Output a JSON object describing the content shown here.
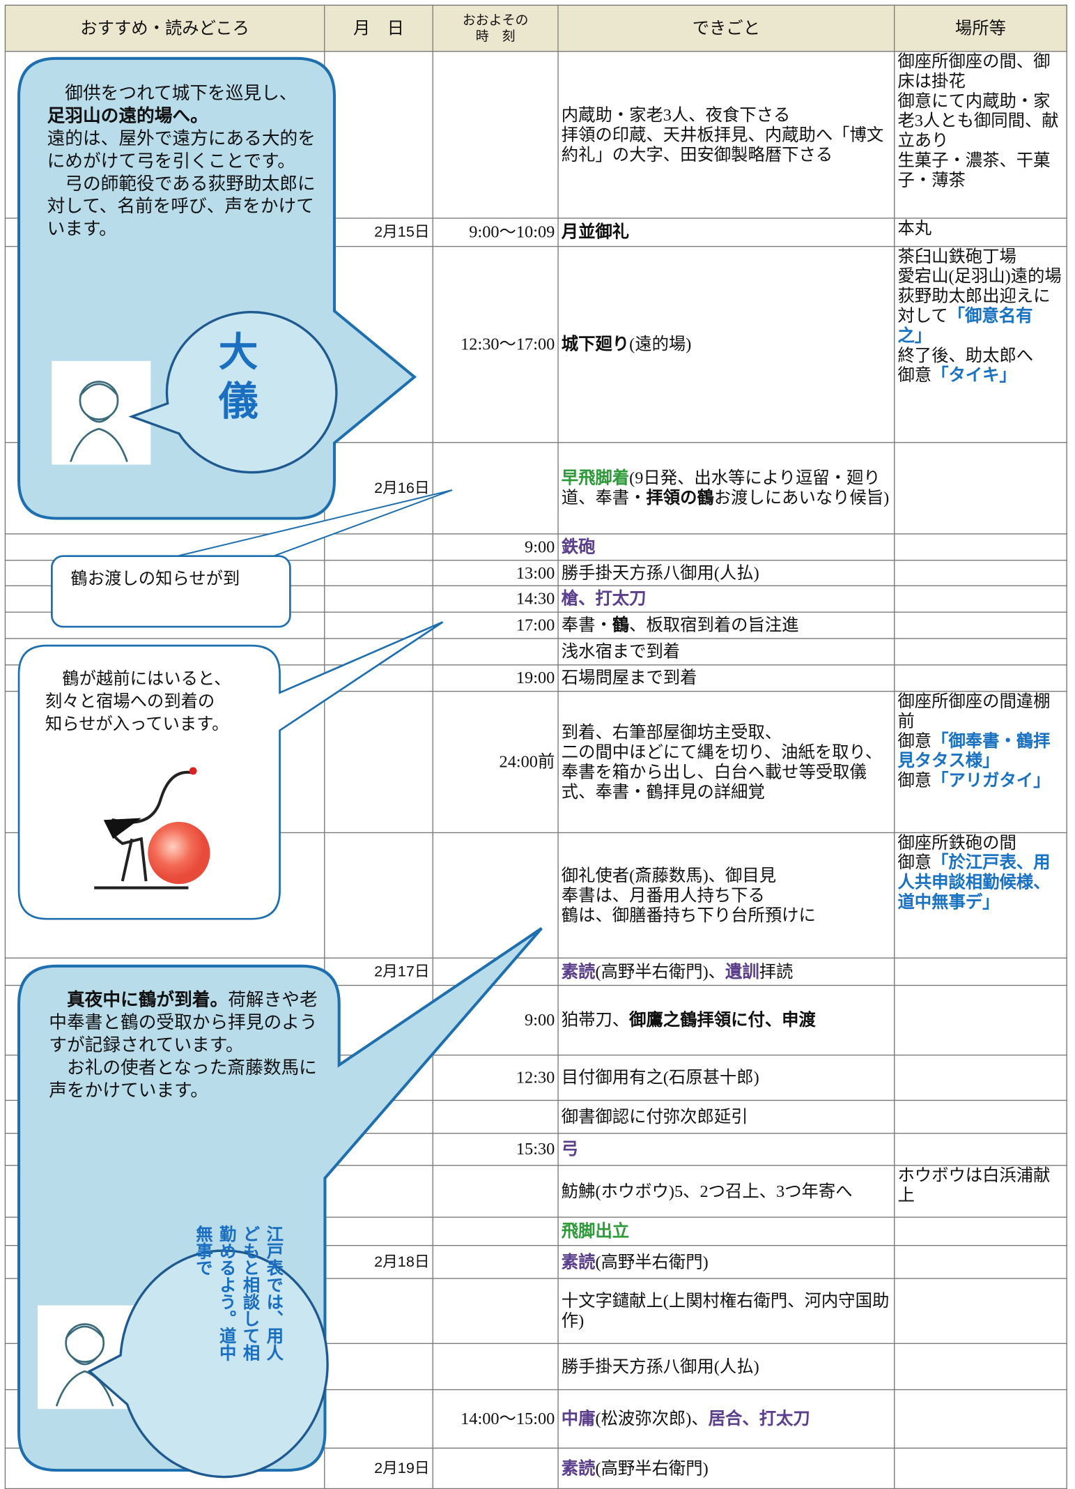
{
  "header": {
    "columns": [
      "おすすめ・読みどころ",
      "月　日",
      "おおよその\n時　刻",
      "できごと",
      "場所等"
    ]
  },
  "rows": [
    {
      "date": null,
      "time": null,
      "event": [
        {
          "text": "内蔵助・家老3人、夜食下さる\n拝領の印蔵、天井板拝見、内蔵助へ「博文約礼」の大字、田安御製略暦下さる"
        }
      ],
      "place": [
        {
          "text": "御座所御座の間、御床は掛花\n御意にて内蔵助・家老3人とも御同間、献立あり\n生菓子・濃茶、干菓子・薄茶"
        }
      ]
    },
    {
      "date": "2月15日",
      "time": "9:00～10:09",
      "event": [
        {
          "text": "月並御礼",
          "style": "b"
        }
      ],
      "place": [
        {
          "text": "本丸"
        }
      ]
    },
    {
      "date": null,
      "time": "12:30～17:00",
      "event": [
        {
          "text": "城下廻り",
          "style": "b"
        },
        {
          "text": "(遠的場)"
        }
      ],
      "place": [
        {
          "text": "茶臼山鉄砲丁場\n愛宕山(足羽山)遠的場\n荻野助太郎出迎えに対して"
        },
        {
          "text": "「御意名有之」",
          "style": "c"
        },
        {
          "text": "\n終了後、助太郎へ\n御意"
        },
        {
          "text": "「タイキ」",
          "style": "c"
        }
      ]
    },
    {
      "date": "2月16日",
      "time": null,
      "event": [
        {
          "text": "早飛脚着",
          "style": "g"
        },
        {
          "text": "(9日発、出水等により逗留・廻り道、奉書・"
        },
        {
          "text": "拝領の鶴",
          "style": "b"
        },
        {
          "text": "お渡しにあいなり候旨)"
        }
      ],
      "place": null
    },
    {
      "date": null,
      "time": "9:00",
      "event": [
        {
          "text": "鉄砲",
          "style": "p"
        }
      ],
      "place": null
    },
    {
      "date": null,
      "time": "13:00",
      "event": [
        {
          "text": "勝手掛天方孫八御用(人払)"
        }
      ],
      "place": null
    },
    {
      "date": null,
      "time": "14:30",
      "event": [
        {
          "text": "槍、打太刀",
          "style": "p"
        }
      ],
      "place": null
    },
    {
      "date": null,
      "time": "17:00",
      "event": [
        {
          "text": "奉書・"
        },
        {
          "text": "鶴",
          "style": "b"
        },
        {
          "text": "、板取宿到着の旨注進"
        }
      ],
      "place": null
    },
    {
      "date": null,
      "time": null,
      "event": [
        {
          "text": "浅水宿まで到着"
        }
      ],
      "place": null
    },
    {
      "date": null,
      "time": "19:00",
      "event": [
        {
          "text": "石場問屋まで到着"
        }
      ],
      "place": null
    },
    {
      "date": null,
      "time": "24:00前",
      "event": [
        {
          "text": "到着、右筆部屋御坊主受取、\n二の間中ほどにて縄を切り、油紙を取り、奉書を箱から出し、白台へ載せ等受取儀式、奉書・鶴拝見の詳細覚"
        }
      ],
      "place": [
        {
          "text": "御座所御座の間違棚前\n御意"
        },
        {
          "text": "「御奉書・鶴拝見タタス様」",
          "style": "c"
        },
        {
          "text": "\n御意"
        },
        {
          "text": "「アリガタイ」",
          "style": "c"
        }
      ]
    },
    {
      "date": null,
      "time": null,
      "event": [
        {
          "text": "御礼使者(斎藤数馬)、御目見\n奉書は、月番用人持ち下る\n鶴は、御膳番持ち下り台所預けに"
        }
      ],
      "place": [
        {
          "text": "御座所鉄砲の間\n御意"
        },
        {
          "text": "「於江戸表、用人共申談相勤候様、道中無事デ」",
          "style": "c"
        }
      ]
    },
    {
      "date": "2月17日",
      "time": null,
      "event": [
        {
          "text": "素読",
          "style": "p"
        },
        {
          "text": "(高野半右衛門)、"
        },
        {
          "text": "遺訓",
          "style": "p"
        },
        {
          "text": "拝読"
        }
      ],
      "place": null
    },
    {
      "date": null,
      "time": "9:00",
      "event": [
        {
          "text": "狛帯刀、"
        },
        {
          "text": "御鷹之鶴拝領に付、申渡",
          "style": "b"
        }
      ],
      "place": null
    },
    {
      "date": null,
      "time": "12:30",
      "event": [
        {
          "text": "目付御用有之(石原甚十郎)"
        }
      ],
      "place": null
    },
    {
      "date": null,
      "time": null,
      "event": [
        {
          "text": "御書御認に付弥次郎延引"
        }
      ],
      "place": null
    },
    {
      "date": null,
      "time": "15:30",
      "event": [
        {
          "text": "弓",
          "style": "p"
        }
      ],
      "place": null
    },
    {
      "date": null,
      "time": null,
      "event": [
        {
          "text": "魴鮄(ホウボウ)5、2つ召上、3つ年寄へ"
        }
      ],
      "place": [
        {
          "text": "ホウボウは白浜浦献上"
        }
      ]
    },
    {
      "date": null,
      "time": null,
      "event": [
        {
          "text": "飛脚出立",
          "style": "g"
        }
      ],
      "place": null
    },
    {
      "date": "2月18日",
      "time": null,
      "event": [
        {
          "text": "素読",
          "style": "p"
        },
        {
          "text": "(高野半右衛門)"
        }
      ],
      "place": null
    },
    {
      "date": null,
      "time": null,
      "event": [
        {
          "text": "十文字鑓献上(上関村権右衛門、河内守国助作)"
        }
      ],
      "place": null
    },
    {
      "date": null,
      "time": null,
      "event": [
        {
          "text": "勝手掛天方孫八御用(人払)"
        }
      ],
      "place": null
    },
    {
      "date": null,
      "time": "14:00～15:00",
      "event": [
        {
          "text": "中庸",
          "style": "p"
        },
        {
          "text": "(松波弥次郎)、"
        },
        {
          "text": "居合、打太刀",
          "style": "p"
        }
      ],
      "place": null
    },
    {
      "date": "2月19日",
      "time": null,
      "event": [
        {
          "text": "素読",
          "style": "p"
        },
        {
          "text": "(高野半右衛門)"
        }
      ],
      "place": null
    }
  ],
  "callouts": [
    {
      "segments": [
        {
          "text": "　御供をつれて城下を巡見し、\n"
        },
        {
          "text": "足羽山の遠的場へ。",
          "style": "b"
        },
        {
          "text": "\n遠的は、屋外で遠方にある大的をにめがけて弓を引くことです。\n　弓の師範役である荻野助太郎に対して、名前を呼び、声をかけています。"
        }
      ],
      "speech": "大儀"
    },
    {
      "segments": [
        {
          "text": "鶴お渡しの知らせが到"
        }
      ]
    },
    {
      "segments": [
        {
          "text": "　鶴が越前にはいると、\n刻々と宿場への到着の\n知らせが入っています。"
        }
      ]
    },
    {
      "segments": [
        {
          "text": "　真夜中に鶴が到着。",
          "style": "b"
        },
        {
          "text": "荷解きや老中奉書と鶴の受取から拝見のようすが記録されています。\n　お礼の使者となった斎藤数馬に声をかけています。"
        }
      ],
      "speech": "江戸表では、用人どもと相談して相勤めるよう。道中無事で"
    }
  ]
}
